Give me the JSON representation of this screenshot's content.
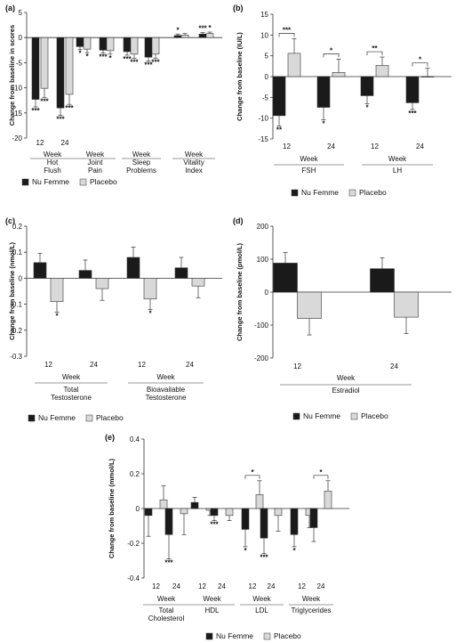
{
  "colors": {
    "nu_femme": "#1a1a1a",
    "placebo": "#d9d9d9",
    "axis": "#333333"
  },
  "legend": {
    "series_a": "Nu Femme",
    "series_b": "Placebo"
  },
  "chart_data": [
    {
      "id": "a",
      "panel_label": "(a)",
      "type": "bar",
      "ylabel": "Change from baseline in scores",
      "ylim": [
        -20,
        5
      ],
      "yticks": [
        5,
        0,
        -5,
        -10,
        -15,
        -20
      ],
      "groups": [
        {
          "week_label": "Week",
          "name_lines": [
            "Hot",
            "Flush"
          ],
          "ticks": [
            "12",
            "24"
          ],
          "nu_femme": [
            {
              "value": -12.3,
              "err": 1.5,
              "sig": "***"
            },
            {
              "value": -14.0,
              "err": 1.5,
              "sig": "***"
            }
          ],
          "placebo": [
            {
              "value": -10.1,
              "err": 1.8,
              "sig": "***"
            },
            {
              "value": -11.3,
              "err": 2.0,
              "sig": "***"
            }
          ]
        },
        {
          "week_label": "Week",
          "name_lines": [
            "Joint",
            "Pain"
          ],
          "ticks": [],
          "nu_femme": [
            {
              "value": -1.8,
              "err": 0.6,
              "sig": "*"
            },
            {
              "value": -2.5,
              "err": 0.6,
              "sig": "***"
            }
          ],
          "placebo": [
            {
              "value": -2.3,
              "err": 0.7,
              "sig": "*"
            },
            {
              "value": -2.6,
              "err": 0.7,
              "sig": "*"
            }
          ]
        },
        {
          "week_label": "Week",
          "name_lines": [
            "Sleep",
            "Problems"
          ],
          "ticks": [],
          "nu_femme": [
            {
              "value": -2.8,
              "err": 0.7,
              "sig": "***"
            },
            {
              "value": -3.9,
              "err": 0.8,
              "sig": "***"
            }
          ],
          "placebo": [
            {
              "value": -3.3,
              "err": 0.8,
              "sig": "***"
            },
            {
              "value": -3.3,
              "err": 0.8,
              "sig": "***"
            }
          ]
        },
        {
          "week_label": "Week",
          "name_lines": [
            "Vitality",
            "Index"
          ],
          "ticks": [],
          "nu_femme": [
            {
              "value": 0.4,
              "err": 0.3,
              "sig": "*"
            },
            {
              "value": 0.7,
              "err": 0.3,
              "sig": "***"
            }
          ],
          "placebo": [
            {
              "value": 0.5,
              "err": 0.3,
              "sig": ""
            },
            {
              "value": 0.8,
              "err": 0.3,
              "sig": "*"
            }
          ]
        }
      ],
      "brackets": []
    },
    {
      "id": "b",
      "panel_label": "(b)",
      "type": "bar",
      "ylabel": "Change from baseline (IU/L)",
      "ylim": [
        -15,
        15
      ],
      "yticks": [
        15,
        10,
        5,
        0,
        -5,
        -10,
        -15
      ],
      "groups": [
        {
          "week_label": "Week",
          "name_lines": [
            "FSH"
          ],
          "ticks": [
            "12",
            "24"
          ],
          "nu_femme": [
            {
              "value": -9.4,
              "err": 2.5,
              "sig": "**"
            },
            {
              "value": -7.4,
              "err": 3.0,
              "sig": "*"
            }
          ],
          "placebo": [
            {
              "value": 5.6,
              "err": 3.5,
              "sig": ""
            },
            {
              "value": 1.0,
              "err": 3.2,
              "sig": ""
            }
          ]
        },
        {
          "week_label": "Week",
          "name_lines": [
            "LH"
          ],
          "ticks": [
            "12",
            "24"
          ],
          "nu_femme": [
            {
              "value": -4.6,
              "err": 1.9,
              "sig": "*"
            },
            {
              "value": -6.3,
              "err": 1.6,
              "sig": "***"
            }
          ],
          "placebo": [
            {
              "value": 2.7,
              "err": 2.0,
              "sig": ""
            },
            {
              "value": 0.0,
              "err": 2.0,
              "sig": ""
            }
          ]
        }
      ],
      "brackets": [
        {
          "group": 0,
          "tp": 0,
          "label": "***"
        },
        {
          "group": 0,
          "tp": 1,
          "label": "*"
        },
        {
          "group": 1,
          "tp": 0,
          "label": "**"
        },
        {
          "group": 1,
          "tp": 1,
          "label": "*"
        }
      ]
    },
    {
      "id": "c",
      "panel_label": "(c)",
      "type": "bar",
      "ylabel": "Change from baseline (nmol/L)",
      "ylim": [
        -0.3,
        0.2
      ],
      "yticks": [
        0.2,
        0.1,
        0,
        -0.1,
        -0.2,
        -0.3
      ],
      "groups": [
        {
          "week_label": "Week",
          "name_lines": [
            "Total",
            "Testosterone"
          ],
          "ticks": [
            "12",
            "24"
          ],
          "nu_femme": [
            {
              "value": 0.06,
              "err": 0.035,
              "sig": ""
            },
            {
              "value": 0.03,
              "err": 0.04,
              "sig": ""
            }
          ],
          "placebo": [
            {
              "value": -0.09,
              "err": 0.04,
              "sig": "*"
            },
            {
              "value": -0.04,
              "err": 0.045,
              "sig": ""
            }
          ]
        },
        {
          "week_label": "Week",
          "name_lines": [
            "Bioavailable",
            "Testosterone"
          ],
          "ticks": [
            "12",
            "24"
          ],
          "nu_femme": [
            {
              "value": 0.08,
              "err": 0.04,
              "sig": ""
            },
            {
              "value": 0.04,
              "err": 0.04,
              "sig": ""
            }
          ],
          "placebo": [
            {
              "value": -0.08,
              "err": 0.04,
              "sig": "*"
            },
            {
              "value": -0.03,
              "err": 0.045,
              "sig": ""
            }
          ]
        }
      ],
      "brackets": []
    },
    {
      "id": "d",
      "panel_label": "(d)",
      "type": "bar",
      "ylabel": "Change from baseline (pmol/L)",
      "ylim": [
        -200,
        200
      ],
      "yticks": [
        200,
        100,
        0,
        -100,
        -200
      ],
      "groups": [
        {
          "week_label": "Week",
          "name_lines": [
            "Estradiol"
          ],
          "ticks": [
            "12",
            "24"
          ],
          "nu_femme": [
            {
              "value": 88,
              "err": 32,
              "sig": ""
            },
            {
              "value": 71,
              "err": 33,
              "sig": ""
            }
          ],
          "placebo": [
            {
              "value": -80,
              "err": 50,
              "sig": ""
            },
            {
              "value": -76,
              "err": 50,
              "sig": ""
            }
          ]
        }
      ],
      "brackets": []
    },
    {
      "id": "e",
      "panel_label": "(e)",
      "type": "bar",
      "ylabel": "Change from baseline (mmol/L)",
      "ylim": [
        -0.4,
        0.4
      ],
      "yticks": [
        0.4,
        0.2,
        0,
        -0.2,
        -0.4
      ],
      "groups": [
        {
          "week_label": "Week",
          "name_lines": [
            "Total",
            "Cholesterol"
          ],
          "ticks": [
            "12",
            "24"
          ],
          "nu_femme": [
            {
              "value": -0.04,
              "err": 0.12,
              "sig": ""
            },
            {
              "value": -0.15,
              "err": 0.14,
              "sig": "***"
            }
          ],
          "placebo": [
            {
              "value": 0.05,
              "err": 0.08,
              "sig": ""
            },
            {
              "value": -0.03,
              "err": 0.12,
              "sig": ""
            }
          ]
        },
        {
          "week_label": "Week",
          "name_lines": [
            "HDL"
          ],
          "ticks": [
            "12",
            "24"
          ],
          "nu_femme": [
            {
              "value": 0.035,
              "err": 0.03,
              "sig": ""
            },
            {
              "value": -0.04,
              "err": 0.03,
              "sig": "***"
            }
          ],
          "placebo": [
            {
              "value": -0.01,
              "err": 0.03,
              "sig": ""
            },
            {
              "value": -0.04,
              "err": 0.03,
              "sig": ""
            }
          ]
        },
        {
          "week_label": "Week",
          "name_lines": [
            "LDL"
          ],
          "ticks": [
            "12",
            "24"
          ],
          "nu_femme": [
            {
              "value": -0.12,
              "err": 0.1,
              "sig": "*"
            },
            {
              "value": -0.17,
              "err": 0.09,
              "sig": "***"
            }
          ],
          "placebo": [
            {
              "value": 0.08,
              "err": 0.08,
              "sig": ""
            },
            {
              "value": -0.04,
              "err": 0.09,
              "sig": ""
            }
          ]
        },
        {
          "week_label": "Week",
          "name_lines": [
            "Triglycerides"
          ],
          "ticks": [
            "12",
            "24"
          ],
          "nu_femme": [
            {
              "value": -0.15,
              "err": 0.07,
              "sig": "*"
            },
            {
              "value": -0.11,
              "err": 0.08,
              "sig": ""
            }
          ],
          "placebo": [
            {
              "value": -0.04,
              "err": 0.07,
              "sig": ""
            },
            {
              "value": 0.1,
              "err": 0.06,
              "sig": ""
            }
          ]
        }
      ],
      "brackets": [
        {
          "group": 2,
          "tp": 0,
          "label": "*"
        },
        {
          "group": 3,
          "tp": 1,
          "label": "*"
        }
      ]
    }
  ]
}
